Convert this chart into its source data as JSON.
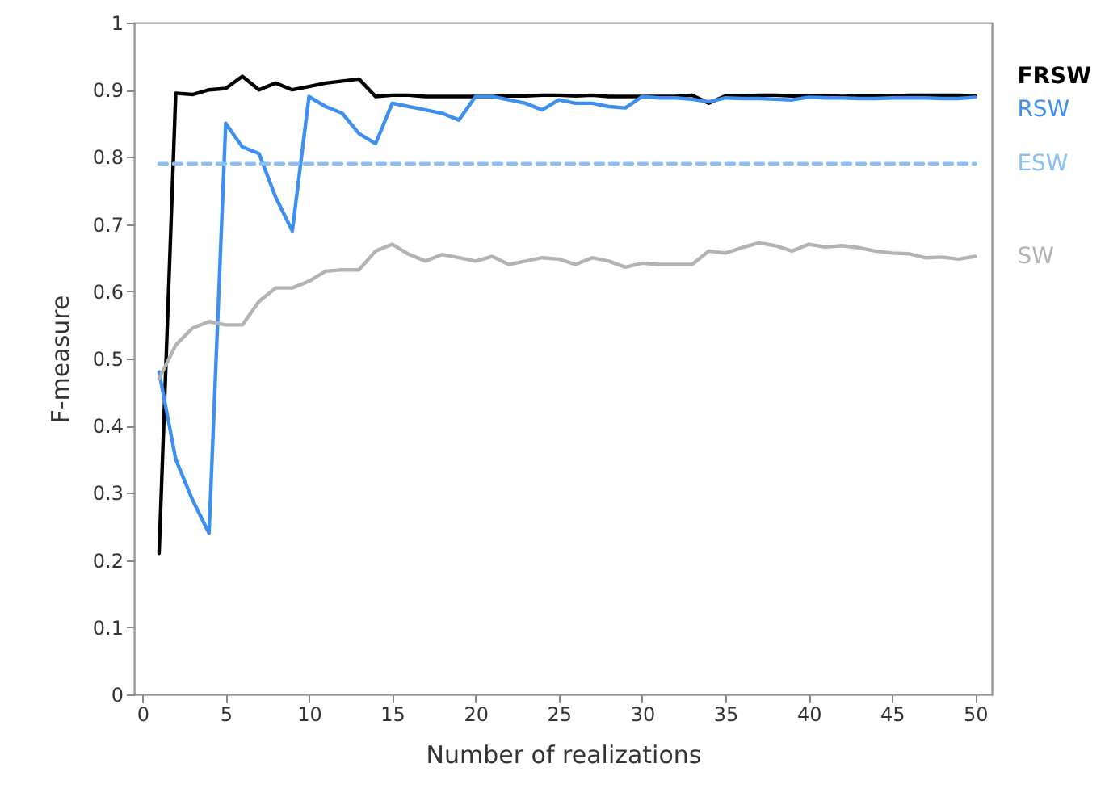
{
  "chart_data": {
    "type": "line",
    "xlabel": "Number of realizations",
    "ylabel": "F-measure",
    "x": [
      1,
      2,
      3,
      4,
      5,
      6,
      7,
      8,
      9,
      10,
      11,
      12,
      13,
      14,
      15,
      16,
      17,
      18,
      19,
      20,
      21,
      22,
      23,
      24,
      25,
      26,
      27,
      28,
      29,
      30,
      31,
      32,
      33,
      34,
      35,
      36,
      37,
      38,
      39,
      40,
      41,
      42,
      43,
      44,
      45,
      46,
      47,
      48,
      49,
      50
    ],
    "xlim": [
      -0.5,
      51
    ],
    "xticks": [
      0,
      5,
      10,
      15,
      20,
      25,
      30,
      35,
      40,
      45,
      50
    ],
    "ylim": [
      0,
      1
    ],
    "yticks": [
      0,
      0.1,
      0.2,
      0.3,
      0.4,
      0.5,
      0.6,
      0.7,
      0.8,
      0.9,
      1
    ],
    "grid": false,
    "series": [
      {
        "name": "FRSW",
        "color": "#000000",
        "values": [
          0.21,
          0.895,
          0.893,
          0.9,
          0.902,
          0.92,
          0.9,
          0.91,
          0.9,
          0.905,
          0.91,
          0.913,
          0.916,
          0.89,
          0.892,
          0.892,
          0.89,
          0.89,
          0.89,
          0.89,
          0.89,
          0.891,
          0.891,
          0.892,
          0.892,
          0.891,
          0.892,
          0.89,
          0.89,
          0.89,
          0.89,
          0.89,
          0.892,
          0.88,
          0.891,
          0.891,
          0.892,
          0.892,
          0.891,
          0.891,
          0.891,
          0.89,
          0.891,
          0.891,
          0.891,
          0.892,
          0.892,
          0.892,
          0.892,
          0.891
        ]
      },
      {
        "name": "RSW",
        "color": "#3d8ff0",
        "values": [
          0.48,
          0.35,
          0.29,
          0.24,
          0.85,
          0.815,
          0.805,
          0.74,
          0.69,
          0.89,
          0.875,
          0.865,
          0.835,
          0.82,
          0.88,
          0.875,
          0.87,
          0.865,
          0.855,
          0.89,
          0.89,
          0.885,
          0.88,
          0.87,
          0.885,
          0.88,
          0.88,
          0.875,
          0.873,
          0.89,
          0.888,
          0.888,
          0.886,
          0.882,
          0.888,
          0.887,
          0.887,
          0.886,
          0.885,
          0.889,
          0.888,
          0.888,
          0.887,
          0.887,
          0.888,
          0.888,
          0.888,
          0.887,
          0.887,
          0.889
        ]
      },
      {
        "name": "ESW",
        "color": "#88c0f5",
        "line_style": "dashed",
        "values": [
          0.79,
          0.79,
          0.79,
          0.79,
          0.79,
          0.79,
          0.79,
          0.79,
          0.79,
          0.79,
          0.79,
          0.79,
          0.79,
          0.79,
          0.79,
          0.79,
          0.79,
          0.79,
          0.79,
          0.79,
          0.79,
          0.79,
          0.79,
          0.79,
          0.79,
          0.79,
          0.79,
          0.79,
          0.79,
          0.79,
          0.79,
          0.79,
          0.79,
          0.79,
          0.79,
          0.79,
          0.79,
          0.79,
          0.79,
          0.79,
          0.79,
          0.79,
          0.79,
          0.79,
          0.79,
          0.79,
          0.79,
          0.79,
          0.79,
          0.79
        ]
      },
      {
        "name": "SW",
        "color": "#b3b3b3",
        "values": [
          0.47,
          0.52,
          0.545,
          0.555,
          0.55,
          0.55,
          0.585,
          0.605,
          0.605,
          0.615,
          0.63,
          0.632,
          0.632,
          0.66,
          0.67,
          0.655,
          0.645,
          0.655,
          0.65,
          0.645,
          0.652,
          0.64,
          0.645,
          0.65,
          0.648,
          0.64,
          0.65,
          0.645,
          0.636,
          0.642,
          0.64,
          0.64,
          0.64,
          0.66,
          0.657,
          0.665,
          0.672,
          0.668,
          0.66,
          0.67,
          0.666,
          0.668,
          0.665,
          0.66,
          0.657,
          0.656,
          0.65,
          0.651,
          0.648,
          0.652
        ]
      }
    ]
  }
}
